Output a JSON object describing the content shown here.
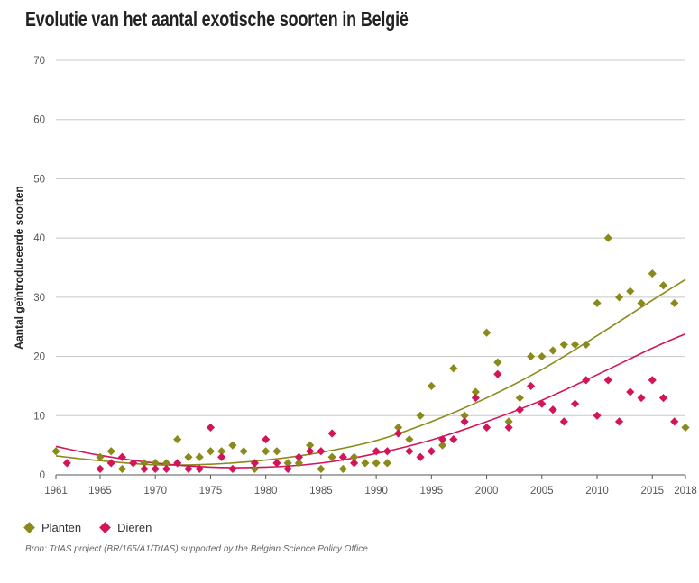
{
  "title": "Evolutie van het aantal exotische soorten in België",
  "source": "Bron: TrIAS project (BR/165/A1/TrIAS) supported by the Belgian Science Policy Office",
  "chart_data": {
    "type": "scatter",
    "title": "Evolutie van het aantal exotische soorten in België",
    "ylabel": "Aantal geïntroduceerde soorten",
    "xlabel": "",
    "xlim": [
      1961,
      2018
    ],
    "ylim": [
      0,
      70
    ],
    "yticks": [
      0,
      10,
      20,
      30,
      40,
      50,
      60,
      70
    ],
    "xticks": [
      1961,
      1965,
      1970,
      1975,
      1980,
      1985,
      1990,
      1995,
      2000,
      2005,
      2010,
      2015,
      2018
    ],
    "grid": "horizontal",
    "legend_position": "bottom-left",
    "series": [
      {
        "name": "Planten",
        "color": "#8a8a1a",
        "marker": "diamond",
        "x": [
          1961,
          1965,
          1966,
          1967,
          1968,
          1969,
          1970,
          1971,
          1972,
          1973,
          1974,
          1975,
          1976,
          1977,
          1978,
          1979,
          1980,
          1981,
          1982,
          1983,
          1984,
          1985,
          1986,
          1987,
          1988,
          1989,
          1990,
          1991,
          1992,
          1993,
          1994,
          1995,
          1996,
          1997,
          1998,
          1999,
          2000,
          2001,
          2002,
          2003,
          2004,
          2005,
          2006,
          2007,
          2008,
          2009,
          2010,
          2011,
          2012,
          2013,
          2014,
          2015,
          2016,
          2017,
          2018
        ],
        "y": [
          4,
          3,
          4,
          1,
          2,
          2,
          2,
          2,
          6,
          3,
          3,
          4,
          4,
          5,
          4,
          1,
          4,
          4,
          2,
          2,
          5,
          1,
          3,
          1,
          3,
          2,
          2,
          2,
          8,
          6,
          10,
          15,
          5,
          18,
          10,
          14,
          24,
          19,
          9,
          13,
          20,
          20,
          21,
          22,
          22,
          22,
          29,
          40,
          30,
          31,
          29,
          34,
          32,
          29,
          8
        ],
        "trend": {
          "x": [
            1961,
            1965,
            1970,
            1975,
            1980,
            1985,
            1990,
            1995,
            2000,
            2005,
            2010,
            2015,
            2018
          ],
          "y": [
            3.2,
            2.4,
            1.7,
            1.8,
            2.5,
            3.8,
            5.8,
            9.0,
            13.0,
            17.8,
            23.5,
            29.5,
            33.0
          ]
        }
      },
      {
        "name": "Dieren",
        "color": "#d4145a",
        "marker": "diamond",
        "x": [
          1962,
          1965,
          1966,
          1967,
          1968,
          1969,
          1970,
          1971,
          1972,
          1973,
          1974,
          1975,
          1976,
          1977,
          1979,
          1980,
          1981,
          1982,
          1983,
          1984,
          1985,
          1986,
          1987,
          1988,
          1990,
          1991,
          1992,
          1993,
          1994,
          1995,
          1996,
          1997,
          1998,
          1999,
          2000,
          2001,
          2002,
          2003,
          2004,
          2005,
          2006,
          2007,
          2008,
          2009,
          2010,
          2011,
          2012,
          2013,
          2014,
          2015,
          2016,
          2017
        ],
        "y": [
          2,
          1,
          2,
          3,
          2,
          1,
          1,
          1,
          2,
          1,
          1,
          8,
          3,
          1,
          2,
          6,
          2,
          1,
          3,
          4,
          4,
          7,
          3,
          2,
          4,
          4,
          7,
          4,
          3,
          4,
          6,
          6,
          9,
          13,
          8,
          17,
          8,
          11,
          15,
          12,
          11,
          9,
          12,
          16,
          10,
          16,
          9,
          14,
          13,
          16,
          13,
          9
        ],
        "trend": {
          "x": [
            1961,
            1965,
            1970,
            1975,
            1980,
            1985,
            1990,
            1995,
            2000,
            2005,
            2010,
            2015,
            2018
          ],
          "y": [
            4.8,
            3.3,
            2.0,
            1.3,
            1.3,
            2.0,
            3.6,
            5.9,
            9.0,
            12.6,
            16.9,
            21.4,
            23.8
          ]
        }
      }
    ]
  }
}
